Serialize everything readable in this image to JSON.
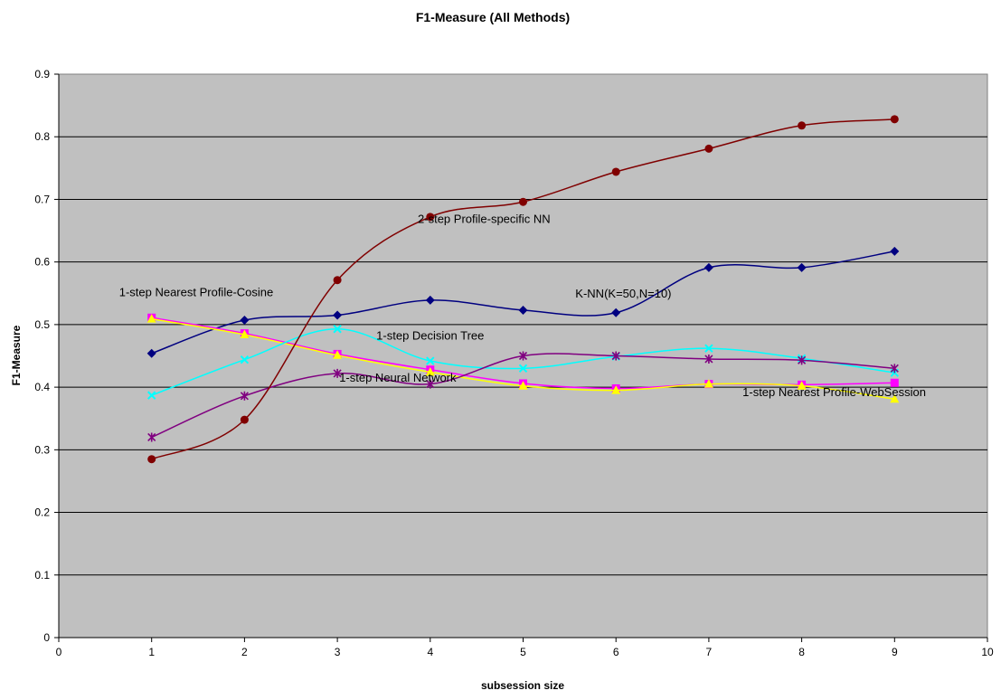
{
  "chart_data": {
    "type": "line",
    "title": "F1-Measure (All Methods)",
    "xlabel": "subsession size",
    "ylabel": "F1-Measure",
    "xlim": [
      0,
      10
    ],
    "ylim": [
      0,
      0.9
    ],
    "x_ticks": [
      "0",
      "1",
      "2",
      "3",
      "4",
      "5",
      "6",
      "7",
      "8",
      "9",
      "10"
    ],
    "y_ticks": [
      "0",
      "0.1",
      "0.2",
      "0.3",
      "0.4",
      "0.5",
      "0.6",
      "0.7",
      "0.8",
      "0.9"
    ],
    "grid": true,
    "plot_background": "#c0c0c0",
    "x": [
      1,
      2,
      3,
      4,
      5,
      6,
      7,
      8,
      9
    ],
    "series": [
      {
        "color": "#000080",
        "marker": "diamond",
        "values": [
          0.454,
          0.507,
          0.515,
          0.539,
          0.523,
          0.519,
          0.591,
          0.591,
          0.617
        ]
      },
      {
        "color": "#ff00ff",
        "marker": "square",
        "values": [
          0.511,
          0.486,
          0.453,
          0.428,
          0.406,
          0.398,
          0.405,
          0.404,
          0.407
        ]
      },
      {
        "color": "#ffff00",
        "marker": "triangle",
        "values": [
          0.509,
          0.484,
          0.451,
          0.424,
          0.402,
          0.395,
          0.405,
          0.402,
          0.381
        ]
      },
      {
        "color": "#00ffff",
        "marker": "x",
        "values": [
          0.387,
          0.444,
          0.493,
          0.442,
          0.43,
          0.449,
          0.462,
          0.446,
          0.423
        ]
      },
      {
        "color": "#800080",
        "marker": "star",
        "values": [
          0.32,
          0.386,
          0.422,
          0.405,
          0.45,
          0.45,
          0.445,
          0.443,
          0.43
        ]
      },
      {
        "color": "#800000",
        "marker": "circle",
        "values": [
          0.285,
          0.348,
          0.571,
          0.672,
          0.696,
          0.744,
          0.781,
          0.818,
          0.828
        ]
      }
    ],
    "annotations": [
      {
        "text": "2-step Profile-specific NN",
        "x": 4.58,
        "y": 0.662
      },
      {
        "text": "1-step Nearest Profile-Cosine",
        "x": 1.48,
        "y": 0.545
      },
      {
        "text": "K-NN(K=50,N=10)",
        "x": 6.08,
        "y": 0.543
      },
      {
        "text": "1-step Decision Tree",
        "x": 4.0,
        "y": 0.476
      },
      {
        "text": "1-step Neural Network",
        "x": 3.65,
        "y": 0.409
      },
      {
        "text": "1-step Nearest Profile-WebSession",
        "x": 8.35,
        "y": 0.386
      }
    ]
  }
}
